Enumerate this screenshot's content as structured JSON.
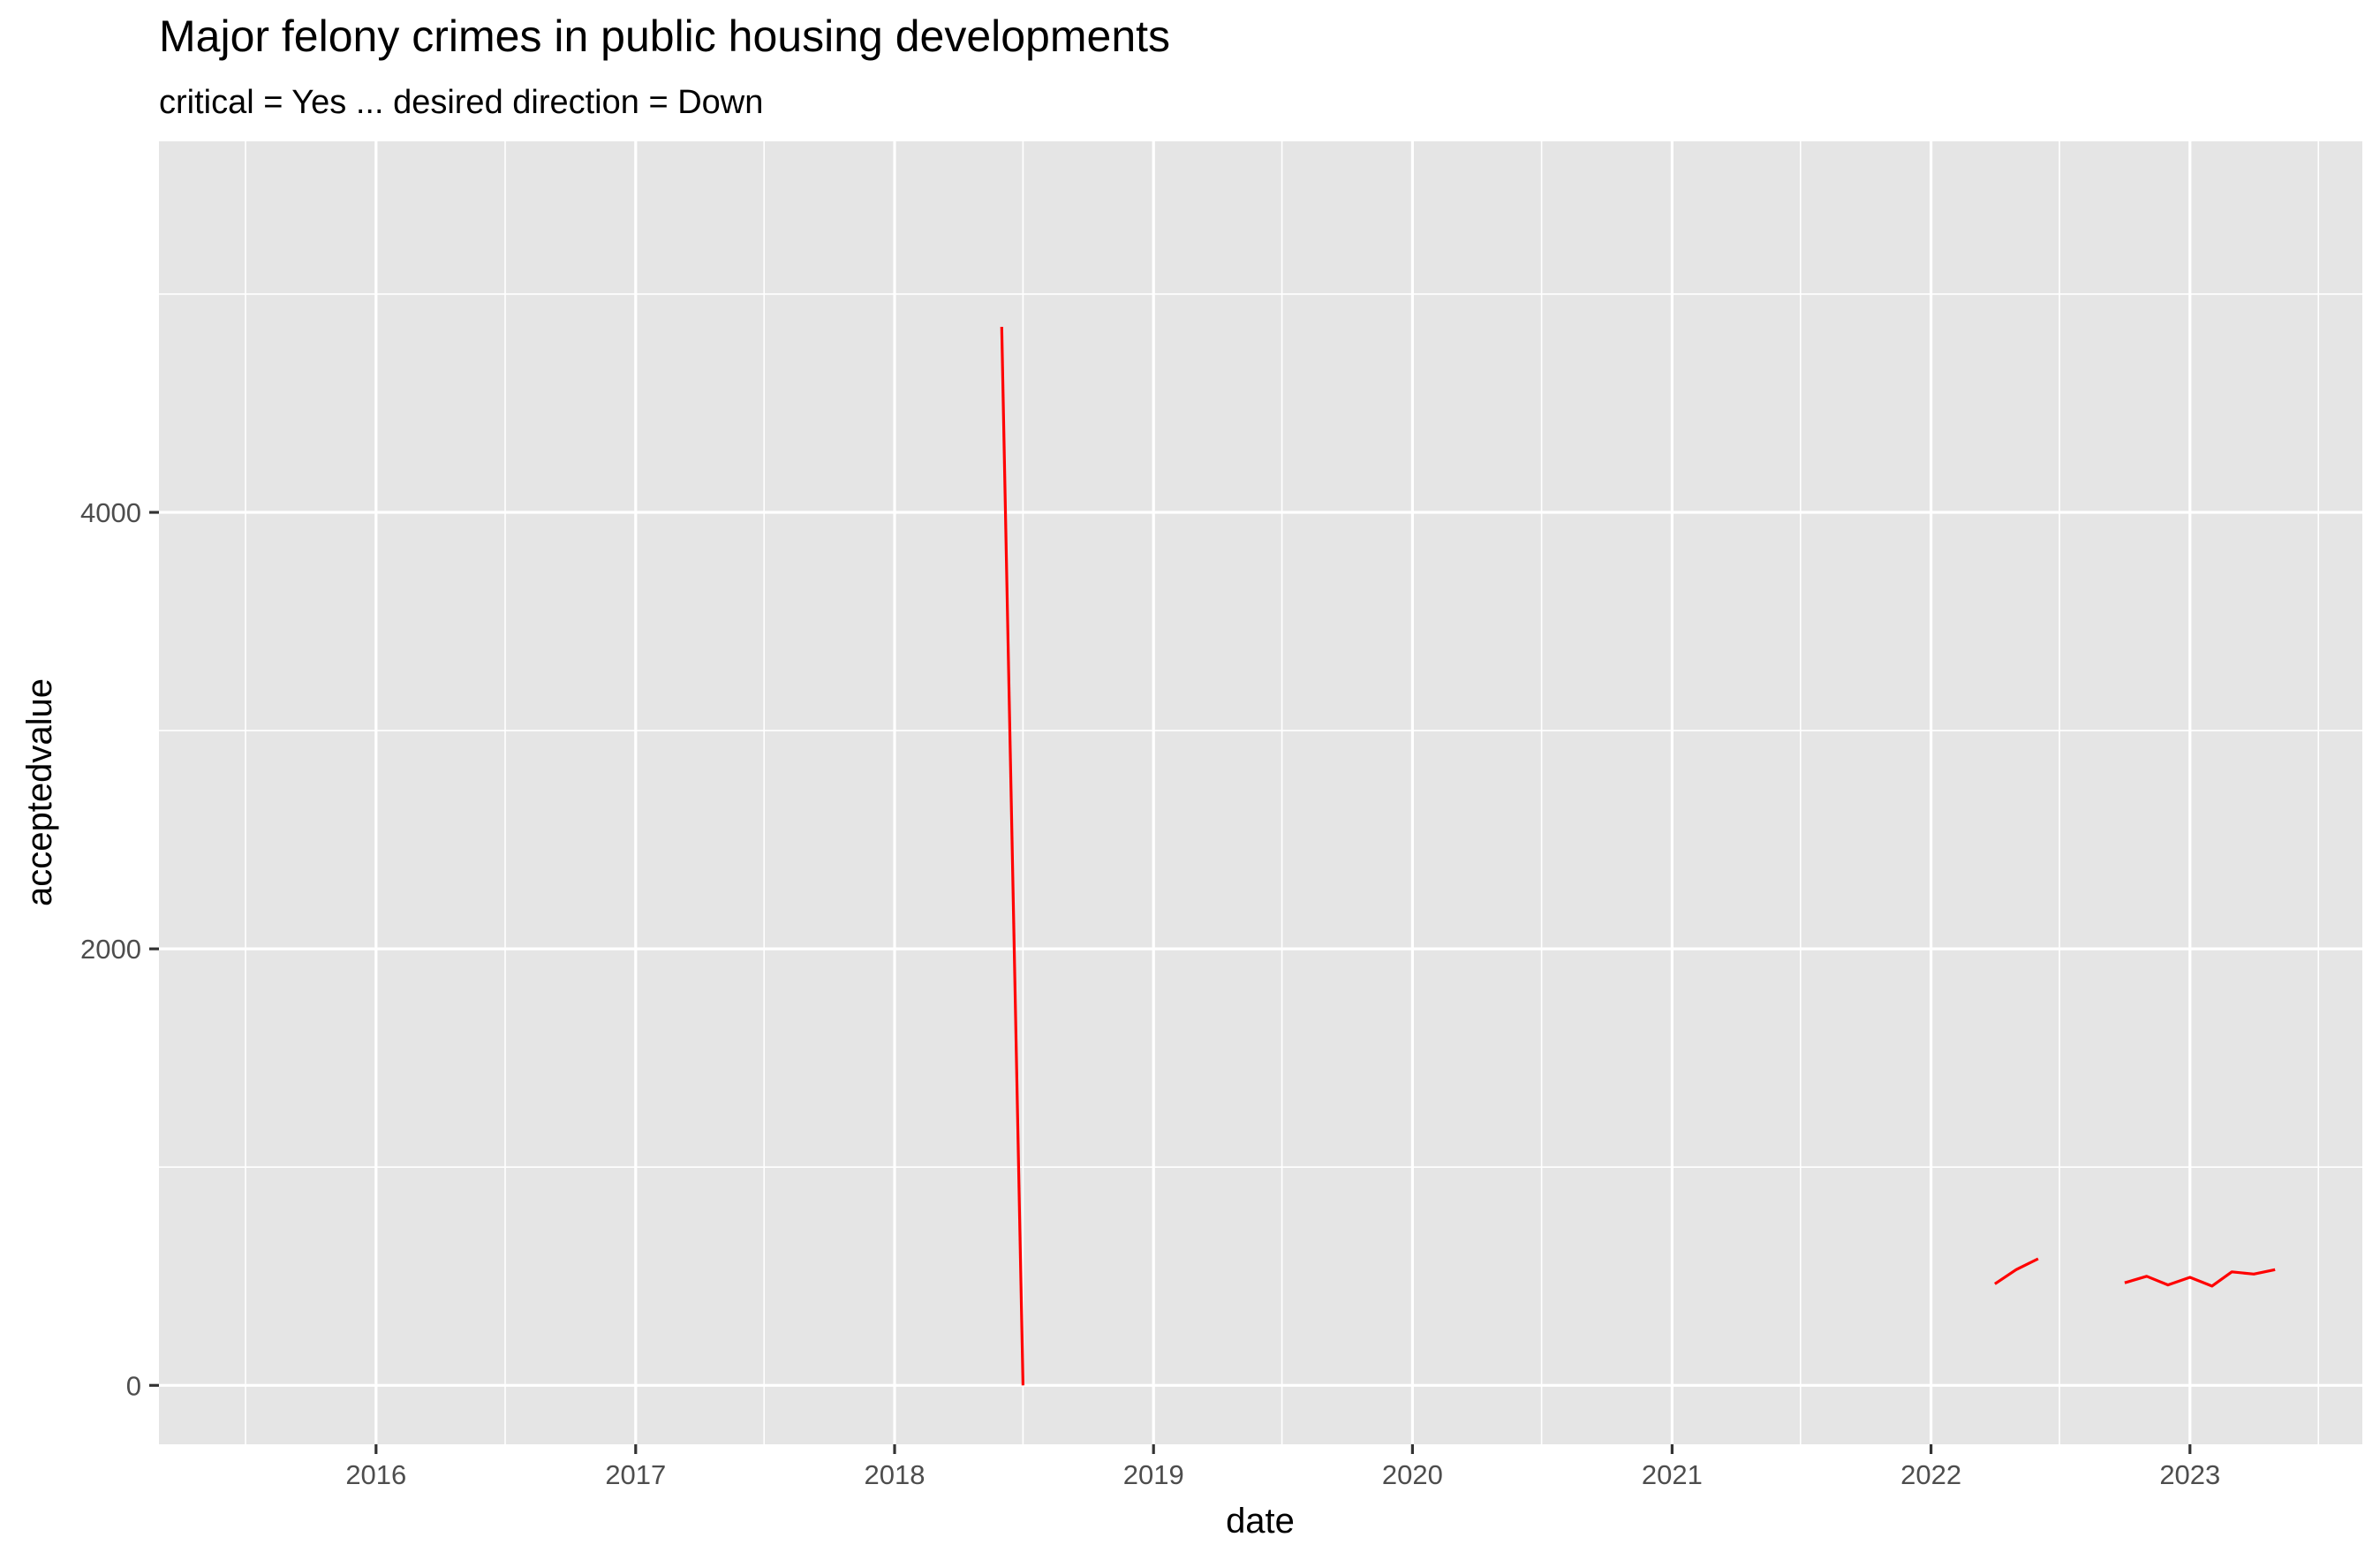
{
  "chart_data": {
    "type": "line",
    "title": "Major felony crimes in public housing developments",
    "subtitle": "critical = Yes ... desired direction = Down",
    "xlabel": "date",
    "ylabel": "acceptedvalue",
    "x_scale": "date",
    "xlim": [
      "2015-03-01",
      "2023-09-01"
    ],
    "ylim": [
      -270,
      5700
    ],
    "x_ticks": [
      {
        "date": "2016-01-01",
        "label": "2016"
      },
      {
        "date": "2017-01-01",
        "label": "2017"
      },
      {
        "date": "2018-01-01",
        "label": "2018"
      },
      {
        "date": "2019-01-01",
        "label": "2019"
      },
      {
        "date": "2020-01-01",
        "label": "2020"
      },
      {
        "date": "2021-01-01",
        "label": "2021"
      },
      {
        "date": "2022-01-01",
        "label": "2022"
      },
      {
        "date": "2023-01-01",
        "label": "2023"
      }
    ],
    "x_minor_ticks": [
      "2015-07-01",
      "2016-07-01",
      "2017-07-01",
      "2018-07-01",
      "2019-07-01",
      "2020-07-01",
      "2021-07-01",
      "2022-07-01",
      "2023-07-01"
    ],
    "y_ticks": [
      {
        "value": 0,
        "label": "0"
      },
      {
        "value": 2000,
        "label": "2000"
      },
      {
        "value": 4000,
        "label": "4000"
      }
    ],
    "y_minor_ticks": [
      1000,
      3000,
      5000
    ],
    "grid": true,
    "panel_color": "#e5e5e5",
    "grid_color": "#ffffff",
    "line_color": "#ff0000",
    "segments": [
      [
        {
          "x": "2018-06-01",
          "y": 4850
        },
        {
          "x": "2018-07-01",
          "y": 0
        }
      ],
      [
        {
          "x": "2022-04-01",
          "y": 465
        },
        {
          "x": "2022-05-01",
          "y": 530
        },
        {
          "x": "2022-06-01",
          "y": 580
        }
      ],
      [
        {
          "x": "2022-10-01",
          "y": 470
        },
        {
          "x": "2022-11-01",
          "y": 500
        },
        {
          "x": "2022-12-01",
          "y": 460
        },
        {
          "x": "2023-01-01",
          "y": 495
        },
        {
          "x": "2023-02-01",
          "y": 455
        },
        {
          "x": "2023-03-01",
          "y": 520
        },
        {
          "x": "2023-04-01",
          "y": 510
        },
        {
          "x": "2023-05-01",
          "y": 530
        }
      ]
    ]
  }
}
